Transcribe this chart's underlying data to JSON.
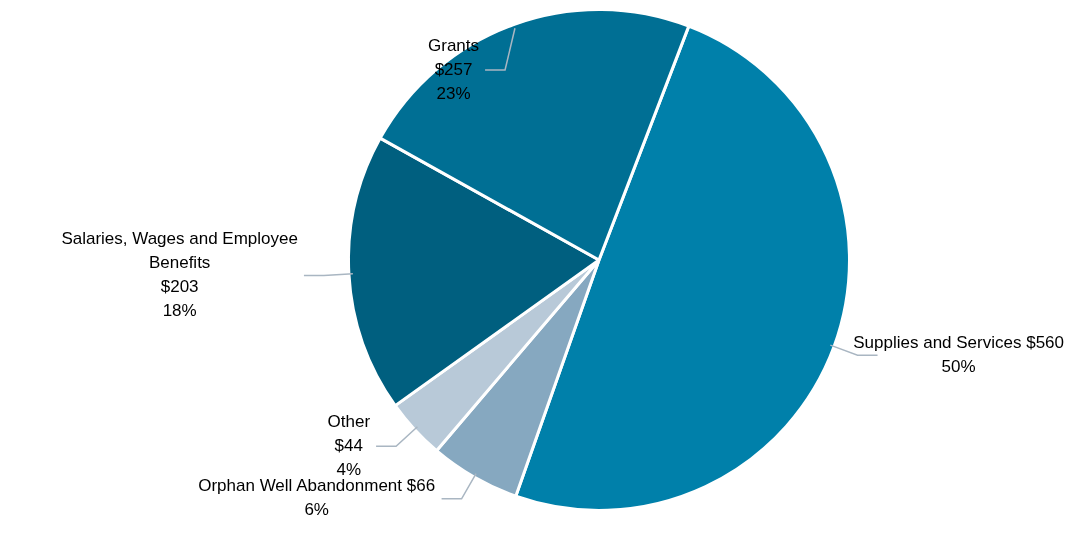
{
  "chart_data": {
    "type": "pie",
    "categories": [
      "Supplies and Services",
      "Orphan Well Abandonment",
      "Other",
      "Salaries, Wages and Employee Benefits",
      "Grants"
    ],
    "values": [
      560,
      66,
      44,
      203,
      257
    ],
    "colors": [
      "#0080aa",
      "#86a8c0",
      "#b8c9d8",
      "#005f7f",
      "#006f94"
    ],
    "value_labels": [
      "$560\n50%",
      "$66\n6%",
      "$44\n4%",
      "$203\n18%",
      "$257\n23%"
    ],
    "legend": false
  }
}
